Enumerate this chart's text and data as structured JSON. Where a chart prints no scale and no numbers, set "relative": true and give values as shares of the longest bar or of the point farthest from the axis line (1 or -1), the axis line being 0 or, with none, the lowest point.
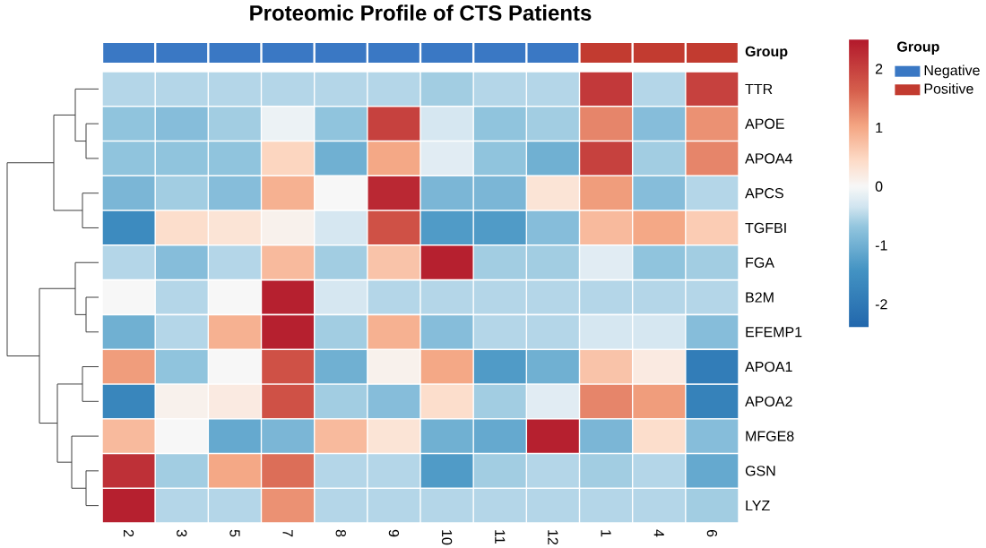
{
  "chart_data": [
    {
      "type": "heatmap",
      "categories": [
        "2",
        "3",
        "5",
        "7",
        "8",
        "9",
        "10",
        "11",
        "12",
        "1",
        "4",
        "6"
      ],
      "y_categories": [
        "TTR",
        "APOE",
        "APOA4",
        "APCS",
        "TGFBI",
        "FGA",
        "B2M",
        "EFEMP1",
        "APOA1",
        "APOA2",
        "MFGE8",
        "GSN",
        "LYZ"
      ],
      "cells": [
        [
          -0.5,
          -0.5,
          -0.5,
          -0.5,
          -0.5,
          -0.5,
          -0.6,
          -0.5,
          -0.5,
          2.1,
          -0.5,
          2.0
        ],
        [
          -0.7,
          -0.8,
          -0.6,
          -0.1,
          -0.7,
          2.0,
          -0.3,
          -0.7,
          -0.6,
          1.3,
          -0.8,
          1.2
        ],
        [
          -0.7,
          -0.7,
          -0.7,
          0.5,
          -1.0,
          1.0,
          -0.2,
          -0.7,
          -1.0,
          2.0,
          -0.6,
          1.3
        ],
        [
          -0.9,
          -0.6,
          -0.8,
          0.9,
          0.0,
          2.3,
          -0.9,
          -0.9,
          0.3,
          1.1,
          -0.8,
          -0.5
        ],
        [
          -1.6,
          0.4,
          0.3,
          0.1,
          -0.3,
          1.8,
          -1.3,
          -1.3,
          -0.8,
          0.8,
          1.0,
          0.6
        ],
        [
          -0.5,
          -0.8,
          -0.5,
          0.8,
          -0.6,
          0.7,
          2.4,
          -0.6,
          -0.6,
          -0.2,
          -0.7,
          -0.6
        ],
        [
          0.0,
          -0.5,
          0.0,
          2.4,
          -0.3,
          -0.5,
          -0.5,
          -0.5,
          -0.5,
          -0.5,
          -0.5,
          -0.5
        ],
        [
          -1.0,
          -0.5,
          0.9,
          2.4,
          -0.6,
          0.9,
          -0.8,
          -0.5,
          -0.5,
          -0.3,
          -0.3,
          -0.8
        ],
        [
          1.1,
          -0.7,
          0.0,
          1.8,
          -1.0,
          0.1,
          1.0,
          -1.3,
          -1.0,
          0.7,
          0.2,
          -1.9
        ],
        [
          -1.7,
          0.1,
          0.2,
          1.8,
          -0.6,
          -0.8,
          0.4,
          -0.6,
          -0.2,
          1.3,
          1.1,
          -1.8
        ],
        [
          0.8,
          0.0,
          -1.1,
          -0.9,
          0.8,
          0.3,
          -1.0,
          -1.1,
          2.4,
          -0.9,
          0.4,
          -0.8
        ],
        [
          2.2,
          -0.6,
          1.0,
          1.5,
          -0.5,
          -0.5,
          -1.3,
          -0.6,
          -0.5,
          -0.6,
          -0.5,
          -1.1
        ],
        [
          2.4,
          -0.5,
          -0.5,
          1.2,
          -0.5,
          -0.5,
          -0.5,
          -0.5,
          -0.5,
          -0.5,
          -0.5,
          -0.6
        ]
      ],
      "clim": [
        -2.4,
        2.5
      ],
      "cticks": [
        -2,
        -1,
        0,
        1,
        2
      ]
    },
    {
      "type": "bar",
      "title": "Proteomic Profile of CTS Patients",
      "relative": true,
      "categories": [
        null,
        null,
        null,
        null,
        null,
        null,
        null,
        null,
        null,
        null,
        null,
        null
      ],
      "y_categories": [
        "Group"
      ],
      "legend_title": "Group",
      "legend": "right",
      "series": [
        {
          "name": "Negative",
          "color": "#3a78c4",
          "values": [
            1,
            1,
            1,
            1,
            1,
            1,
            1,
            1,
            1,
            null,
            null,
            null
          ]
        },
        {
          "name": "Positive",
          "color": "#c23b30",
          "values": [
            null,
            null,
            null,
            null,
            null,
            null,
            null,
            null,
            null,
            1,
            1,
            1
          ]
        }
      ]
    }
  ]
}
